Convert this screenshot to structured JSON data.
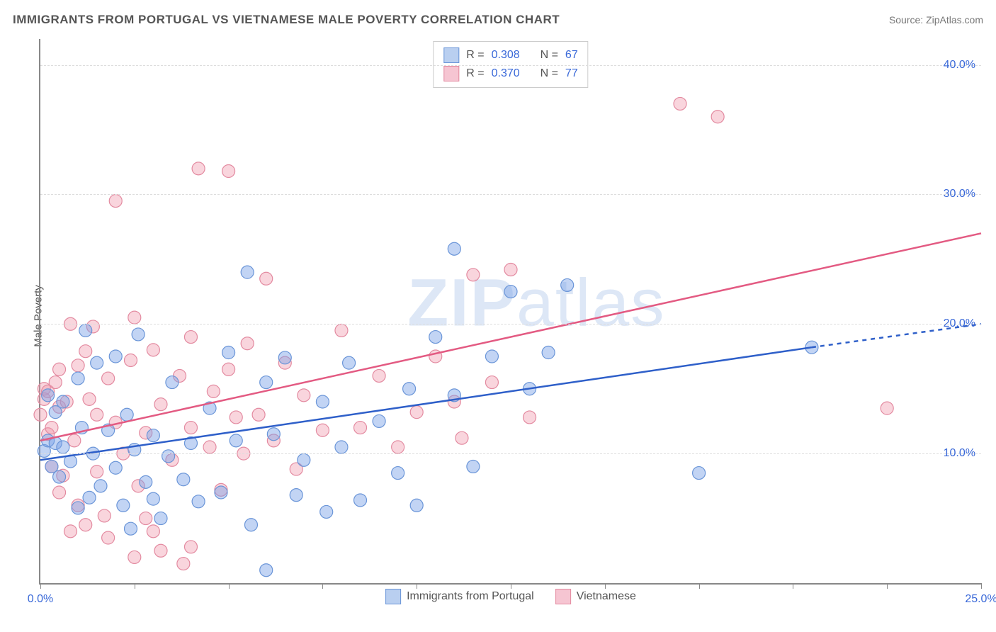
{
  "title": "IMMIGRANTS FROM PORTUGAL VS VIETNAMESE MALE POVERTY CORRELATION CHART",
  "source_prefix": "Source: ",
  "source_link": "ZipAtlas.com",
  "ylabel": "Male Poverty",
  "watermark_bold": "ZIP",
  "watermark_thin": "atlas",
  "chart": {
    "type": "scatter",
    "xlim": [
      0,
      25
    ],
    "ylim": [
      0,
      42
    ],
    "x_ticks": [
      0,
      2.5,
      5,
      7.5,
      10,
      12.5,
      15,
      17.5,
      20,
      22.5,
      25
    ],
    "x_tick_labels": {
      "0": "0.0%",
      "25": "25.0%"
    },
    "y_gridlines": [
      10,
      20,
      30,
      40
    ],
    "y_tick_labels": {
      "10": "10.0%",
      "20": "20.0%",
      "30": "30.0%",
      "40": "40.0%"
    },
    "marker_radius": 9,
    "marker_opacity": 0.55,
    "marker_stroke_width": 1.2,
    "grid_color": "#dddddd",
    "axis_color": "#888888",
    "label_color": "#3968d8",
    "background_color": "#ffffff",
    "title_fontsize": 17,
    "label_fontsize": 15,
    "tick_fontsize": 16,
    "trend_line_width": 2.5
  },
  "series": [
    {
      "name": "Immigrants from Portugal",
      "color_fill": "rgba(120,160,230,0.45)",
      "color_stroke": "#6a95d8",
      "swatch_fill": "#b9cff0",
      "swatch_border": "#6a95d8",
      "R_label": "R = ",
      "R": "0.308",
      "N_label": "N = ",
      "N": "67",
      "trend": {
        "x1": 0,
        "y1": 9.5,
        "x2": 20.5,
        "y2": 18.2,
        "dash_to_x": 25,
        "dash_to_y": 20.0
      },
      "points": [
        [
          0.1,
          10.2
        ],
        [
          0.2,
          11.0
        ],
        [
          0.2,
          14.5
        ],
        [
          0.3,
          9.0
        ],
        [
          0.4,
          10.8
        ],
        [
          0.4,
          13.2
        ],
        [
          0.5,
          8.2
        ],
        [
          0.6,
          14.0
        ],
        [
          0.6,
          10.5
        ],
        [
          0.8,
          9.4
        ],
        [
          1.0,
          15.8
        ],
        [
          1.0,
          5.8
        ],
        [
          1.1,
          12.0
        ],
        [
          1.2,
          19.5
        ],
        [
          1.3,
          6.6
        ],
        [
          1.4,
          10.0
        ],
        [
          1.5,
          17.0
        ],
        [
          1.6,
          7.5
        ],
        [
          1.8,
          11.8
        ],
        [
          2.0,
          8.9
        ],
        [
          2.0,
          17.5
        ],
        [
          2.2,
          6.0
        ],
        [
          2.3,
          13.0
        ],
        [
          2.4,
          4.2
        ],
        [
          2.5,
          10.3
        ],
        [
          2.6,
          19.2
        ],
        [
          2.8,
          7.8
        ],
        [
          3.0,
          6.5
        ],
        [
          3.0,
          11.4
        ],
        [
          3.2,
          5.0
        ],
        [
          3.4,
          9.8
        ],
        [
          3.5,
          15.5
        ],
        [
          3.8,
          8.0
        ],
        [
          4.0,
          10.8
        ],
        [
          4.2,
          6.3
        ],
        [
          4.5,
          13.5
        ],
        [
          4.8,
          7.0
        ],
        [
          5.0,
          17.8
        ],
        [
          5.2,
          11.0
        ],
        [
          5.5,
          24.0
        ],
        [
          5.6,
          4.5
        ],
        [
          6.0,
          1.0
        ],
        [
          6.0,
          15.5
        ],
        [
          6.2,
          11.5
        ],
        [
          6.5,
          17.4
        ],
        [
          6.8,
          6.8
        ],
        [
          7.0,
          9.5
        ],
        [
          7.5,
          14.0
        ],
        [
          7.6,
          5.5
        ],
        [
          8.0,
          10.5
        ],
        [
          8.2,
          17.0
        ],
        [
          8.5,
          6.4
        ],
        [
          9.0,
          12.5
        ],
        [
          9.5,
          8.5
        ],
        [
          9.8,
          15.0
        ],
        [
          10.0,
          6.0
        ],
        [
          10.5,
          19.0
        ],
        [
          11.0,
          25.8
        ],
        [
          11.0,
          14.5
        ],
        [
          11.5,
          9.0
        ],
        [
          12.0,
          17.5
        ],
        [
          12.5,
          22.5
        ],
        [
          13.0,
          15.0
        ],
        [
          13.5,
          17.8
        ],
        [
          14.0,
          23.0
        ],
        [
          17.5,
          8.5
        ],
        [
          20.5,
          18.2
        ]
      ]
    },
    {
      "name": "Vietnamese",
      "color_fill": "rgba(240,150,170,0.40)",
      "color_stroke": "#e38aa0",
      "swatch_fill": "#f6c5d2",
      "swatch_border": "#e38aa0",
      "R_label": "R = ",
      "R": "0.370",
      "N_label": "N = ",
      "N": "77",
      "trend": {
        "x1": 0,
        "y1": 11.0,
        "x2": 25,
        "y2": 27.0
      },
      "points": [
        [
          0.0,
          13.0
        ],
        [
          0.1,
          14.2
        ],
        [
          0.1,
          15.0
        ],
        [
          0.2,
          11.5
        ],
        [
          0.2,
          14.8
        ],
        [
          0.3,
          12.0
        ],
        [
          0.3,
          9.0
        ],
        [
          0.4,
          15.5
        ],
        [
          0.5,
          7.0
        ],
        [
          0.5,
          13.6
        ],
        [
          0.5,
          16.5
        ],
        [
          0.6,
          8.3
        ],
        [
          0.7,
          14.0
        ],
        [
          0.8,
          20.0
        ],
        [
          0.9,
          11.0
        ],
        [
          1.0,
          16.8
        ],
        [
          1.0,
          6.0
        ],
        [
          1.2,
          17.9
        ],
        [
          1.3,
          14.2
        ],
        [
          1.4,
          19.8
        ],
        [
          1.5,
          8.6
        ],
        [
          1.5,
          13.0
        ],
        [
          1.7,
          5.2
        ],
        [
          1.8,
          15.8
        ],
        [
          2.0,
          29.5
        ],
        [
          2.0,
          12.4
        ],
        [
          2.2,
          10.0
        ],
        [
          2.4,
          17.2
        ],
        [
          2.5,
          20.5
        ],
        [
          2.6,
          7.5
        ],
        [
          2.8,
          11.6
        ],
        [
          3.0,
          18.0
        ],
        [
          3.0,
          4.0
        ],
        [
          3.2,
          13.8
        ],
        [
          3.5,
          9.5
        ],
        [
          3.7,
          16.0
        ],
        [
          3.8,
          1.5
        ],
        [
          4.0,
          12.0
        ],
        [
          4.0,
          19.0
        ],
        [
          4.2,
          32.0
        ],
        [
          4.5,
          10.5
        ],
        [
          4.6,
          14.8
        ],
        [
          4.8,
          7.2
        ],
        [
          5.0,
          31.8
        ],
        [
          5.0,
          16.5
        ],
        [
          5.2,
          12.8
        ],
        [
          5.4,
          10.0
        ],
        [
          5.5,
          18.5
        ],
        [
          5.8,
          13.0
        ],
        [
          6.0,
          23.5
        ],
        [
          6.2,
          11.0
        ],
        [
          6.5,
          17.0
        ],
        [
          6.8,
          8.8
        ],
        [
          7.0,
          14.5
        ],
        [
          7.5,
          11.8
        ],
        [
          8.0,
          19.5
        ],
        [
          8.5,
          12.0
        ],
        [
          9.0,
          16.0
        ],
        [
          9.5,
          10.5
        ],
        [
          10.0,
          13.2
        ],
        [
          10.5,
          17.5
        ],
        [
          11.0,
          14.0
        ],
        [
          11.2,
          11.2
        ],
        [
          11.5,
          23.8
        ],
        [
          12.0,
          15.5
        ],
        [
          12.5,
          24.2
        ],
        [
          13.0,
          12.8
        ],
        [
          17.0,
          37.0
        ],
        [
          18.0,
          36.0
        ],
        [
          22.5,
          13.5
        ],
        [
          2.5,
          2.0
        ],
        [
          3.2,
          2.5
        ],
        [
          1.8,
          3.5
        ],
        [
          4.0,
          2.8
        ],
        [
          1.2,
          4.5
        ],
        [
          0.8,
          4.0
        ],
        [
          2.8,
          5.0
        ]
      ]
    }
  ]
}
